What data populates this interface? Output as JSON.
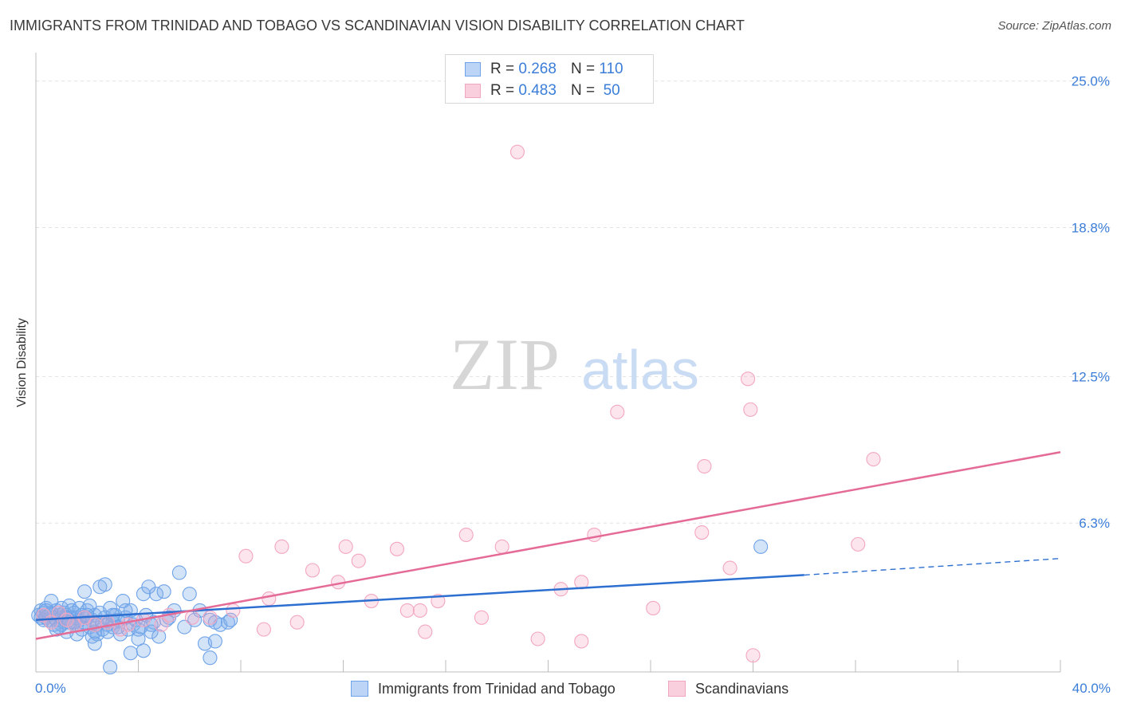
{
  "title": "IMMIGRANTS FROM TRINIDAD AND TOBAGO VS SCANDINAVIAN VISION DISABILITY CORRELATION CHART",
  "source": "Source: ZipAtlas.com",
  "watermark": {
    "zip": "ZIP",
    "atlas": "atlas"
  },
  "legend_top": {
    "rows": [
      {
        "r_label": "R =",
        "r_value": "0.268",
        "n_label": "N =",
        "n_value": "110"
      },
      {
        "r_label": "R =",
        "r_value": "0.483",
        "n_label": "N =",
        "n_value": "50"
      }
    ]
  },
  "chart_data": {
    "type": "scatter",
    "title": "IMMIGRANTS FROM TRINIDAD AND TOBAGO VS SCANDINAVIAN VISION DISABILITY CORRELATION CHART",
    "xlabel": "",
    "ylabel": "Vision Disability",
    "xlim": [
      0,
      40
    ],
    "ylim": [
      0,
      25.8
    ],
    "x_tick_labels": [
      "0.0%",
      "40.0%"
    ],
    "y_ticks": [
      6.3,
      12.5,
      18.8,
      25.0
    ],
    "y_tick_labels": [
      "6.3%",
      "12.5%",
      "18.8%",
      "25.0%"
    ],
    "grid": true,
    "legend_position": "bottom",
    "series": [
      {
        "name": "Immigrants from Trinidad and Tobago",
        "color": "#6ea3e8",
        "line_color": "#2c6fd1",
        "r": 0.268,
        "n": 110,
        "trend": {
          "x0": 0,
          "y0": 2.2,
          "x1": 30,
          "y1": 4.1,
          "dashed_to_x": 40,
          "dashed_to_y": 4.8
        },
        "points": [
          [
            0.1,
            2.4
          ],
          [
            0.2,
            2.3
          ],
          [
            0.2,
            2.6
          ],
          [
            0.3,
            2.2
          ],
          [
            0.3,
            2.5
          ],
          [
            0.4,
            2.3
          ],
          [
            0.4,
            2.7
          ],
          [
            0.5,
            2.4
          ],
          [
            0.5,
            2.2
          ],
          [
            0.6,
            2.5
          ],
          [
            0.6,
            3.0
          ],
          [
            0.7,
            2.3
          ],
          [
            0.7,
            2.0
          ],
          [
            0.8,
            2.6
          ],
          [
            0.8,
            2.2
          ],
          [
            0.9,
            2.4
          ],
          [
            0.9,
            1.9
          ],
          [
            1.0,
            2.3
          ],
          [
            1.0,
            2.7
          ],
          [
            1.1,
            2.5
          ],
          [
            1.1,
            2.1
          ],
          [
            1.2,
            2.4
          ],
          [
            1.2,
            1.7
          ],
          [
            1.3,
            2.2
          ],
          [
            1.3,
            2.8
          ],
          [
            1.4,
            2.6
          ],
          [
            1.4,
            2.3
          ],
          [
            1.5,
            2.0
          ],
          [
            1.5,
            2.5
          ],
          [
            1.6,
            2.3
          ],
          [
            1.6,
            1.6
          ],
          [
            1.7,
            2.7
          ],
          [
            1.7,
            2.2
          ],
          [
            1.8,
            2.4
          ],
          [
            1.8,
            1.8
          ],
          [
            1.9,
            2.1
          ],
          [
            1.9,
            3.4
          ],
          [
            2.0,
            2.6
          ],
          [
            2.0,
            2.3
          ],
          [
            2.1,
            1.9
          ],
          [
            2.1,
            2.8
          ],
          [
            2.2,
            1.5
          ],
          [
            2.2,
            2.2
          ],
          [
            2.3,
            1.7
          ],
          [
            2.3,
            2.4
          ],
          [
            2.4,
            2.0
          ],
          [
            2.4,
            1.6
          ],
          [
            2.5,
            2.5
          ],
          [
            2.5,
            3.6
          ],
          [
            2.6,
            2.1
          ],
          [
            2.6,
            1.8
          ],
          [
            2.7,
            3.7
          ],
          [
            2.7,
            2.3
          ],
          [
            2.8,
            2.0
          ],
          [
            2.8,
            1.7
          ],
          [
            2.9,
            2.7
          ],
          [
            3.0,
            2.1
          ],
          [
            3.0,
            1.9
          ],
          [
            3.1,
            2.4
          ],
          [
            3.2,
            2.2
          ],
          [
            3.3,
            1.6
          ],
          [
            3.4,
            3.0
          ],
          [
            3.5,
            2.3
          ],
          [
            3.6,
            1.8
          ],
          [
            3.7,
            2.6
          ],
          [
            3.8,
            2.0
          ],
          [
            3.9,
            2.2
          ],
          [
            4.0,
            1.4
          ],
          [
            4.1,
            1.9
          ],
          [
            4.2,
            3.3
          ],
          [
            4.3,
            2.4
          ],
          [
            4.4,
            3.6
          ],
          [
            4.5,
            1.7
          ],
          [
            4.6,
            2.1
          ],
          [
            4.7,
            3.3
          ],
          [
            4.8,
            1.5
          ],
          [
            5.0,
            3.4
          ],
          [
            5.2,
            2.3
          ],
          [
            5.4,
            2.6
          ],
          [
            5.6,
            4.2
          ],
          [
            5.8,
            1.9
          ],
          [
            6.0,
            3.3
          ],
          [
            6.2,
            2.2
          ],
          [
            6.4,
            2.6
          ],
          [
            6.6,
            1.2
          ],
          [
            6.8,
            2.2
          ],
          [
            7.0,
            1.3
          ],
          [
            7.2,
            2.0
          ],
          [
            7.5,
            2.1
          ],
          [
            1.0,
            2.0
          ],
          [
            1.2,
            2.3
          ],
          [
            1.5,
            2.1
          ],
          [
            2.0,
            2.4
          ],
          [
            2.3,
            1.2
          ],
          [
            3.0,
            2.4
          ],
          [
            3.2,
            1.9
          ],
          [
            3.7,
            0.8
          ],
          [
            4.0,
            1.8
          ],
          [
            4.2,
            0.9
          ],
          [
            4.5,
            2.0
          ],
          [
            5.1,
            2.2
          ],
          [
            6.8,
            0.6
          ],
          [
            7.0,
            2.1
          ],
          [
            3.5,
            2.6
          ],
          [
            0.8,
            1.8
          ],
          [
            0.4,
            2.6
          ],
          [
            1.3,
            2.1
          ],
          [
            2.9,
            0.2
          ],
          [
            28.3,
            5.3
          ],
          [
            7.6,
            2.2
          ]
        ]
      },
      {
        "name": "Scandinavians",
        "color": "#f3a6c0",
        "line_color": "#e56b97",
        "r": 0.483,
        "n": 50,
        "trend": {
          "x0": 0,
          "y0": 1.4,
          "x1": 40,
          "y1": 9.3
        },
        "points": [
          [
            18.8,
            22.0
          ],
          [
            27.8,
            12.4
          ],
          [
            22.7,
            11.0
          ],
          [
            27.9,
            11.1
          ],
          [
            26.1,
            8.7
          ],
          [
            32.7,
            9.0
          ],
          [
            26.0,
            5.9
          ],
          [
            21.8,
            5.8
          ],
          [
            16.8,
            5.8
          ],
          [
            32.1,
            5.4
          ],
          [
            18.2,
            5.3
          ],
          [
            14.1,
            5.2
          ],
          [
            12.1,
            5.3
          ],
          [
            9.6,
            5.3
          ],
          [
            8.2,
            4.9
          ],
          [
            12.6,
            4.7
          ],
          [
            27.1,
            4.4
          ],
          [
            10.8,
            4.3
          ],
          [
            11.8,
            3.8
          ],
          [
            21.3,
            3.8
          ],
          [
            20.5,
            3.5
          ],
          [
            9.1,
            3.1
          ],
          [
            13.1,
            3.0
          ],
          [
            15.7,
            3.0
          ],
          [
            24.1,
            2.7
          ],
          [
            14.5,
            2.6
          ],
          [
            15.0,
            2.6
          ],
          [
            7.7,
            2.6
          ],
          [
            17.4,
            2.3
          ],
          [
            6.8,
            2.3
          ],
          [
            6.1,
            2.3
          ],
          [
            5.2,
            2.4
          ],
          [
            10.2,
            2.1
          ],
          [
            8.9,
            1.8
          ],
          [
            4.2,
            2.2
          ],
          [
            3.6,
            2.0
          ],
          [
            3.3,
            1.8
          ],
          [
            4.9,
            2.0
          ],
          [
            2.8,
            2.1
          ],
          [
            2.3,
            2.0
          ],
          [
            1.9,
            2.3
          ],
          [
            1.5,
            2.0
          ],
          [
            1.2,
            2.2
          ],
          [
            0.9,
            2.5
          ],
          [
            0.6,
            2.1
          ],
          [
            0.3,
            2.4
          ],
          [
            15.2,
            1.7
          ],
          [
            19.6,
            1.4
          ],
          [
            21.3,
            1.3
          ],
          [
            28.0,
            0.7
          ]
        ]
      }
    ]
  }
}
